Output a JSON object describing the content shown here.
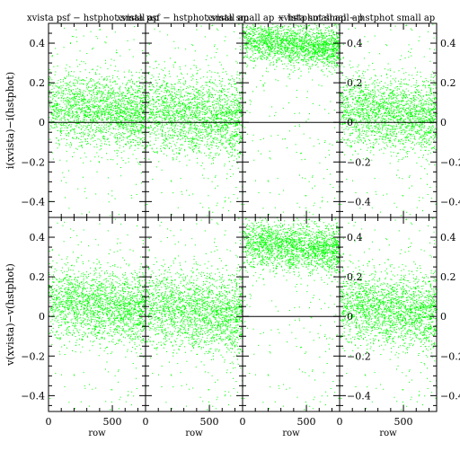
{
  "chart_data": {
    "type": "scatter",
    "x_axis": {
      "label": "row",
      "ticks": [
        0,
        500
      ],
      "range": [
        0,
        760
      ]
    },
    "y_axis": {
      "range": [
        -0.48,
        0.5
      ],
      "ticks": [
        -0.4,
        -0.2,
        0,
        0.2,
        0.4
      ],
      "tick_labels": [
        "−0.4",
        "−0.2",
        "0",
        "0.2",
        "0.4"
      ]
    },
    "row_labels": [
      "i(xvista)−i(hstphot)",
      "v(xvista)−v(hstphot)"
    ],
    "panel_titles": [
      "xvista psf − hstphot small ap",
      "xvista psf − hstphot small ap",
      "xvista small ap − hstphot small ap",
      "xvista small ap − hstphot small ap"
    ],
    "color": "#00ff00",
    "series": [
      {
        "row": 0,
        "col": 0,
        "mean": 0.08,
        "sd": 0.09,
        "zero_line": true
      },
      {
        "row": 0,
        "col": 1,
        "mean": 0.06,
        "sd": 0.1,
        "zero_line": true
      },
      {
        "row": 0,
        "col": 2,
        "mean": 0.42,
        "sd": 0.05,
        "zero_line": true
      },
      {
        "row": 0,
        "col": 3,
        "mean": 0.07,
        "sd": 0.09,
        "zero_line": true
      },
      {
        "row": 1,
        "col": 0,
        "mean": 0.08,
        "sd": 0.09,
        "zero_line": false
      },
      {
        "row": 1,
        "col": 1,
        "mean": 0.05,
        "sd": 0.1,
        "zero_line": false
      },
      {
        "row": 1,
        "col": 2,
        "mean": 0.38,
        "sd": 0.06,
        "zero_line": true
      },
      {
        "row": 1,
        "col": 3,
        "mean": 0.06,
        "sd": 0.09,
        "zero_line": false
      }
    ]
  }
}
